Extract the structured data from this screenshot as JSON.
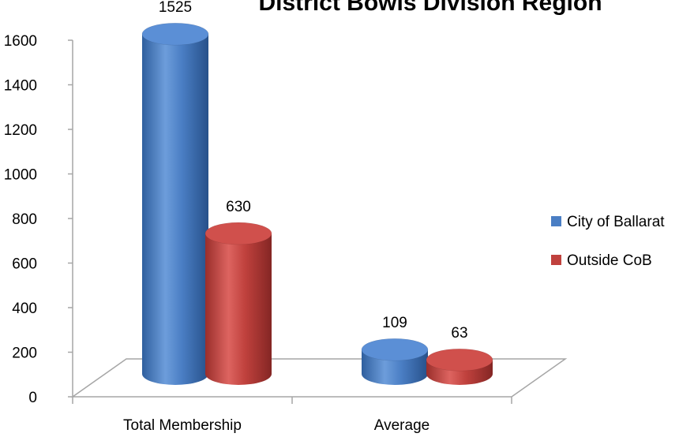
{
  "chart_data": {
    "type": "bar",
    "title": "District Bowls Division Region",
    "categories": [
      "Total Membership",
      "Average"
    ],
    "series": [
      {
        "name": "City of Ballarat",
        "values": [
          1525,
          109
        ],
        "color": "#4a7ec4"
      },
      {
        "name": "Outside CoB",
        "values": [
          630,
          63
        ],
        "color": "#c0413d"
      }
    ],
    "ylim": [
      0,
      1600
    ],
    "yticks": [
      0,
      200,
      400,
      600,
      800,
      1000,
      1200,
      1400,
      1600
    ],
    "data_labels": true,
    "legend_position": "right",
    "grid": false,
    "style": "3d-cylinder"
  }
}
